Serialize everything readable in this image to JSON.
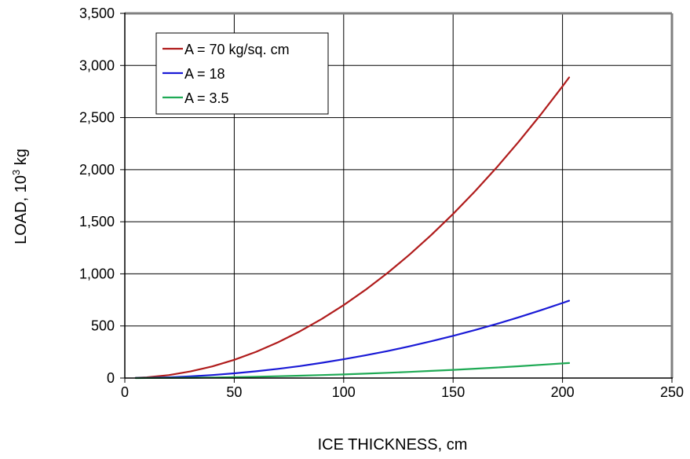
{
  "chart_data": {
    "type": "line",
    "title": "",
    "xlabel": "ICE THICKNESS, cm",
    "ylabel_main": "LOAD, 10",
    "ylabel_sup": "3",
    "ylabel_unit": " kg",
    "xlim": [
      0,
      250
    ],
    "ylim": [
      0,
      3500
    ],
    "xticks": [
      0,
      50,
      100,
      150,
      200,
      250
    ],
    "yticks": [
      0,
      500,
      1000,
      1500,
      2000,
      2500,
      3000,
      3500
    ],
    "xtick_labels": [
      "0",
      "50",
      "100",
      "150",
      "200",
      "250"
    ],
    "ytick_labels": [
      "0",
      "500",
      "1,000",
      "1,500",
      "2,000",
      "2,500",
      "3,000",
      "3,500"
    ],
    "grid": true,
    "legend_position": "top-left",
    "series": [
      {
        "name": "A = 70 kg/sq. cm",
        "color": "#b01c1c",
        "x": [
          5,
          10,
          20,
          30,
          40,
          50,
          60,
          70,
          80,
          90,
          100,
          110,
          120,
          130,
          140,
          150,
          160,
          170,
          180,
          190,
          200,
          203
        ],
        "y": [
          2,
          7,
          28,
          63,
          112,
          175,
          252,
          343,
          448,
          567,
          700,
          847,
          1008,
          1183,
          1372,
          1575,
          1792,
          2023,
          2268,
          2527,
          2800,
          2885
        ]
      },
      {
        "name": "A = 18",
        "color": "#1a1ad6",
        "x": [
          5,
          10,
          20,
          30,
          40,
          50,
          60,
          70,
          80,
          90,
          100,
          110,
          120,
          130,
          140,
          150,
          160,
          170,
          180,
          190,
          200,
          203
        ],
        "y": [
          0.5,
          2,
          7,
          16,
          29,
          45,
          65,
          88,
          115,
          146,
          180,
          218,
          259,
          304,
          353,
          405,
          461,
          520,
          583,
          650,
          720,
          742
        ]
      },
      {
        "name": "A = 3.5",
        "color": "#1faa55",
        "x": [
          5,
          10,
          20,
          30,
          40,
          50,
          60,
          70,
          80,
          90,
          100,
          110,
          120,
          130,
          140,
          150,
          160,
          170,
          180,
          190,
          200,
          203
        ],
        "y": [
          0.1,
          0.4,
          1.4,
          3.2,
          5.6,
          8.8,
          12.6,
          17.2,
          22.4,
          28.4,
          35,
          42.4,
          50.4,
          59.2,
          68.6,
          78.8,
          89.6,
          101,
          113.4,
          126.4,
          140,
          144
        ]
      }
    ]
  }
}
